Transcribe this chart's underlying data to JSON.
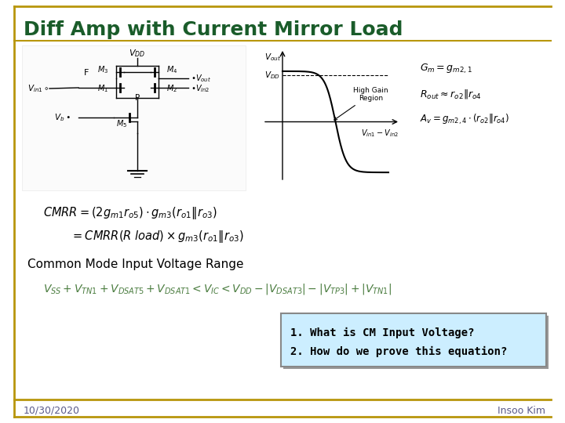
{
  "title": "Diff Amp with Current Mirror Load",
  "title_color": "#1a5c2a",
  "title_fontsize": 18,
  "bg_color": "#ffffff",
  "border_color": "#b8960c",
  "cm_label": "Common Mode Input Voltage Range",
  "box_text1": "1. What is CM Input Voltage?",
  "box_text2": "2. How do we prove this equation?",
  "box_bg": "#cceeff",
  "box_border": "#888888",
  "box_shadow": "#aaaaaa",
  "footer_left": "10/30/2020",
  "footer_right": "Insoo Kim",
  "footer_color": "#5a5a8a",
  "green_color": "#4a7c3f",
  "dark_green": "#1a5c2a",
  "black": "#000000"
}
